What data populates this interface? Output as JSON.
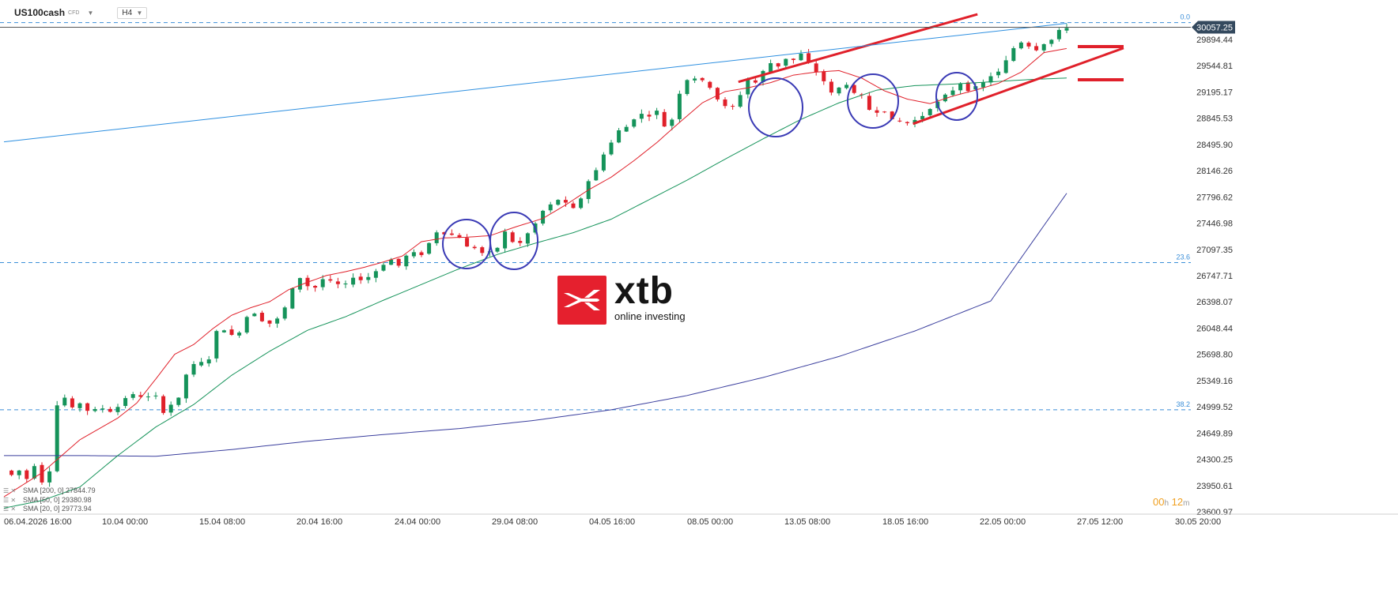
{
  "header": {
    "symbol": "US100cash",
    "instrument_type": "CFD",
    "timeframe": "H4"
  },
  "logo": {
    "word": "xtb",
    "subtitle": "online investing",
    "color": "#e5202e"
  },
  "timer": {
    "hours": "00",
    "hours_unit": "h",
    "minutes": "12",
    "minutes_unit": "m"
  },
  "indicators": [
    {
      "label": "SMA [200, 0]",
      "value": "27844.79",
      "color": "#3b3f9e",
      "icon": "eye-slash-icon"
    },
    {
      "label": "SMA [50, 0]",
      "value": "29380.98",
      "color": "#15935a",
      "icon": "eye-slash-icon"
    },
    {
      "label": "SMA [20, 0]",
      "value": "29773.94",
      "color": "#e0202a",
      "icon": "eye-slash-icon"
    }
  ],
  "chart_data": {
    "type": "candlestick",
    "y_ticks": [
      "29894.44",
      "29544.81",
      "29195.17",
      "28845.53",
      "28495.90",
      "28146.26",
      "27796.62",
      "27446.98",
      "27097.35",
      "26747.71",
      "26398.07",
      "26048.44",
      "25698.80",
      "25349.16",
      "24999.52",
      "24649.89",
      "24300.25",
      "23950.61",
      "23600.97"
    ],
    "x_ticks": [
      "06.04.2026 16:00",
      "10.04 00:00",
      "15.04 08:00",
      "20.04 16:00",
      "24.04 00:00",
      "29.04 08:00",
      "04.05 16:00",
      "08.05 00:00",
      "13.05 08:00",
      "18.05 16:00",
      "22.05 00:00",
      "27.05 12:00",
      "30.05 20:00"
    ],
    "current_price": "30057.25",
    "current_price_color": "#34495e",
    "fibonacci_levels": [
      {
        "label": "0.0",
        "price": 30120
      },
      {
        "label": "23.6",
        "price": 26922
      },
      {
        "label": "38.2",
        "price": 24960
      }
    ],
    "candle_colors": {
      "up": "#15935a",
      "down": "#e0202a"
    },
    "close_series": [
      [
        0,
        24150
      ],
      [
        4,
        24090
      ],
      [
        8,
        24150
      ],
      [
        12,
        24040
      ],
      [
        16,
        24220
      ],
      [
        20,
        24000
      ],
      [
        24,
        24150
      ],
      [
        26,
        24430
      ],
      [
        28,
        25020
      ],
      [
        32,
        25120
      ],
      [
        36,
        24980
      ],
      [
        40,
        25050
      ],
      [
        44,
        24950
      ],
      [
        48,
        24960
      ],
      [
        52,
        24980
      ],
      [
        56,
        24940
      ],
      [
        60,
        25000
      ],
      [
        64,
        25120
      ],
      [
        68,
        25160
      ],
      [
        72,
        25140
      ],
      [
        76,
        25130
      ],
      [
        80,
        25140
      ],
      [
        84,
        24930
      ],
      [
        88,
        25030
      ],
      [
        92,
        25110
      ],
      [
        96,
        25430
      ],
      [
        100,
        25560
      ],
      [
        104,
        25590
      ],
      [
        108,
        25640
      ],
      [
        112,
        26000
      ],
      [
        116,
        26030
      ],
      [
        120,
        25950
      ],
      [
        124,
        26000
      ],
      [
        128,
        26200
      ],
      [
        132,
        26250
      ],
      [
        136,
        26150
      ],
      [
        140,
        26110
      ],
      [
        144,
        26170
      ],
      [
        148,
        26320
      ],
      [
        152,
        26570
      ],
      [
        156,
        26720
      ],
      [
        160,
        26610
      ],
      [
        164,
        26590
      ],
      [
        168,
        26700
      ],
      [
        172,
        26670
      ],
      [
        176,
        26630
      ],
      [
        180,
        26630
      ],
      [
        184,
        26730
      ],
      [
        188,
        26690
      ],
      [
        192,
        26730
      ],
      [
        196,
        26810
      ],
      [
        200,
        26900
      ],
      [
        204,
        26960
      ],
      [
        208,
        26880
      ],
      [
        212,
        27010
      ],
      [
        216,
        27050
      ],
      [
        220,
        27030
      ],
      [
        224,
        27180
      ],
      [
        228,
        27330
      ],
      [
        232,
        27310
      ],
      [
        236,
        27290
      ],
      [
        240,
        27260
      ],
      [
        244,
        27130
      ],
      [
        248,
        27120
      ],
      [
        252,
        27050
      ],
      [
        256,
        27060
      ],
      [
        260,
        27120
      ],
      [
        264,
        27330
      ],
      [
        268,
        27200
      ],
      [
        272,
        27180
      ],
      [
        276,
        27310
      ],
      [
        280,
        27440
      ],
      [
        284,
        27610
      ],
      [
        288,
        27690
      ],
      [
        292,
        27760
      ],
      [
        296,
        27710
      ],
      [
        300,
        27640
      ],
      [
        304,
        27780
      ],
      [
        308,
        28010
      ],
      [
        312,
        28150
      ],
      [
        316,
        28370
      ],
      [
        320,
        28520
      ],
      [
        324,
        28680
      ],
      [
        328,
        28730
      ],
      [
        332,
        28840
      ],
      [
        336,
        28900
      ],
      [
        340,
        28880
      ],
      [
        344,
        28940
      ],
      [
        348,
        28740
      ],
      [
        352,
        28830
      ],
      [
        356,
        29180
      ],
      [
        360,
        29360
      ],
      [
        364,
        29380
      ],
      [
        368,
        29340
      ],
      [
        372,
        29260
      ],
      [
        376,
        29100
      ],
      [
        380,
        29000
      ],
      [
        384,
        29000
      ],
      [
        388,
        29160
      ],
      [
        392,
        29360
      ],
      [
        396,
        29320
      ],
      [
        400,
        29470
      ],
      [
        404,
        29580
      ],
      [
        408,
        29540
      ],
      [
        412,
        29640
      ],
      [
        416,
        29620
      ],
      [
        420,
        29700
      ],
      [
        424,
        29580
      ],
      [
        428,
        29460
      ],
      [
        432,
        29340
      ],
      [
        436,
        29180
      ],
      [
        440,
        29250
      ],
      [
        444,
        29300
      ],
      [
        448,
        29170
      ],
      [
        452,
        29140
      ],
      [
        456,
        28960
      ],
      [
        460,
        28930
      ],
      [
        464,
        28940
      ],
      [
        468,
        28820
      ],
      [
        472,
        28800
      ],
      [
        476,
        28780
      ],
      [
        480,
        28820
      ],
      [
        484,
        28880
      ],
      [
        488,
        28980
      ],
      [
        492,
        29060
      ],
      [
        496,
        29150
      ],
      [
        500,
        29220
      ],
      [
        504,
        29310
      ],
      [
        508,
        29220
      ],
      [
        512,
        29260
      ],
      [
        516,
        29320
      ],
      [
        520,
        29410
      ],
      [
        524,
        29460
      ],
      [
        528,
        29610
      ],
      [
        532,
        29780
      ],
      [
        536,
        29860
      ],
      [
        540,
        29810
      ],
      [
        544,
        29760
      ],
      [
        548,
        29840
      ],
      [
        552,
        29890
      ],
      [
        556,
        30010
      ],
      [
        558,
        30060
      ],
      [
        560,
        30057
      ]
    ],
    "sma20": [
      [
        0,
        23800
      ],
      [
        20,
        24120
      ],
      [
        40,
        24560
      ],
      [
        60,
        24850
      ],
      [
        70,
        25050
      ],
      [
        80,
        25370
      ],
      [
        90,
        25700
      ],
      [
        100,
        25830
      ],
      [
        110,
        26040
      ],
      [
        120,
        26220
      ],
      [
        130,
        26320
      ],
      [
        140,
        26400
      ],
      [
        150,
        26560
      ],
      [
        160,
        26660
      ],
      [
        170,
        26750
      ],
      [
        180,
        26800
      ],
      [
        190,
        26860
      ],
      [
        200,
        26930
      ],
      [
        210,
        27010
      ],
      [
        220,
        27200
      ],
      [
        232,
        27250
      ],
      [
        244,
        27260
      ],
      [
        256,
        27280
      ],
      [
        270,
        27400
      ],
      [
        284,
        27510
      ],
      [
        296,
        27690
      ],
      [
        308,
        27890
      ],
      [
        320,
        28060
      ],
      [
        332,
        28280
      ],
      [
        344,
        28520
      ],
      [
        356,
        28790
      ],
      [
        368,
        29050
      ],
      [
        380,
        29200
      ],
      [
        392,
        29250
      ],
      [
        404,
        29320
      ],
      [
        416,
        29420
      ],
      [
        428,
        29460
      ],
      [
        440,
        29480
      ],
      [
        452,
        29380
      ],
      [
        464,
        29210
      ],
      [
        476,
        29100
      ],
      [
        488,
        29040
      ],
      [
        500,
        29140
      ],
      [
        512,
        29220
      ],
      [
        524,
        29310
      ],
      [
        536,
        29460
      ],
      [
        548,
        29720
      ],
      [
        560,
        29774
      ]
    ],
    "sma50": [
      [
        0,
        23650
      ],
      [
        20,
        23750
      ],
      [
        40,
        23930
      ],
      [
        60,
        24350
      ],
      [
        80,
        24730
      ],
      [
        100,
        25030
      ],
      [
        120,
        25420
      ],
      [
        140,
        25740
      ],
      [
        160,
        26020
      ],
      [
        180,
        26200
      ],
      [
        200,
        26420
      ],
      [
        220,
        26630
      ],
      [
        240,
        26840
      ],
      [
        260,
        27030
      ],
      [
        280,
        27180
      ],
      [
        300,
        27320
      ],
      [
        320,
        27500
      ],
      [
        340,
        27760
      ],
      [
        360,
        28020
      ],
      [
        380,
        28300
      ],
      [
        400,
        28570
      ],
      [
        420,
        28830
      ],
      [
        440,
        29050
      ],
      [
        460,
        29220
      ],
      [
        480,
        29280
      ],
      [
        500,
        29300
      ],
      [
        520,
        29330
      ],
      [
        540,
        29360
      ],
      [
        560,
        29381
      ]
    ],
    "sma200": [
      [
        0,
        24350
      ],
      [
        40,
        24350
      ],
      [
        80,
        24340
      ],
      [
        120,
        24430
      ],
      [
        160,
        24540
      ],
      [
        200,
        24630
      ],
      [
        240,
        24710
      ],
      [
        280,
        24820
      ],
      [
        320,
        24960
      ],
      [
        360,
        25150
      ],
      [
        400,
        25390
      ],
      [
        440,
        25670
      ],
      [
        480,
        26010
      ],
      [
        520,
        26410
      ],
      [
        560,
        27845
      ]
    ],
    "trendlines": [
      {
        "name": "upper-channel",
        "color": "#e0202a",
        "points": [
          [
            387,
            29330
          ],
          [
            513,
            30230
          ]
        ]
      },
      {
        "name": "lower-channel",
        "color": "#e0202a",
        "points": [
          [
            479,
            28770
          ],
          [
            590,
            29780
          ]
        ]
      },
      {
        "name": "long-trendline",
        "color": "#2d8fe0",
        "points": [
          [
            0,
            28530
          ],
          [
            560,
            30110
          ]
        ]
      }
    ],
    "circles_color": "#3a3ab5",
    "grid": false,
    "legend_position": "bottom-left"
  }
}
